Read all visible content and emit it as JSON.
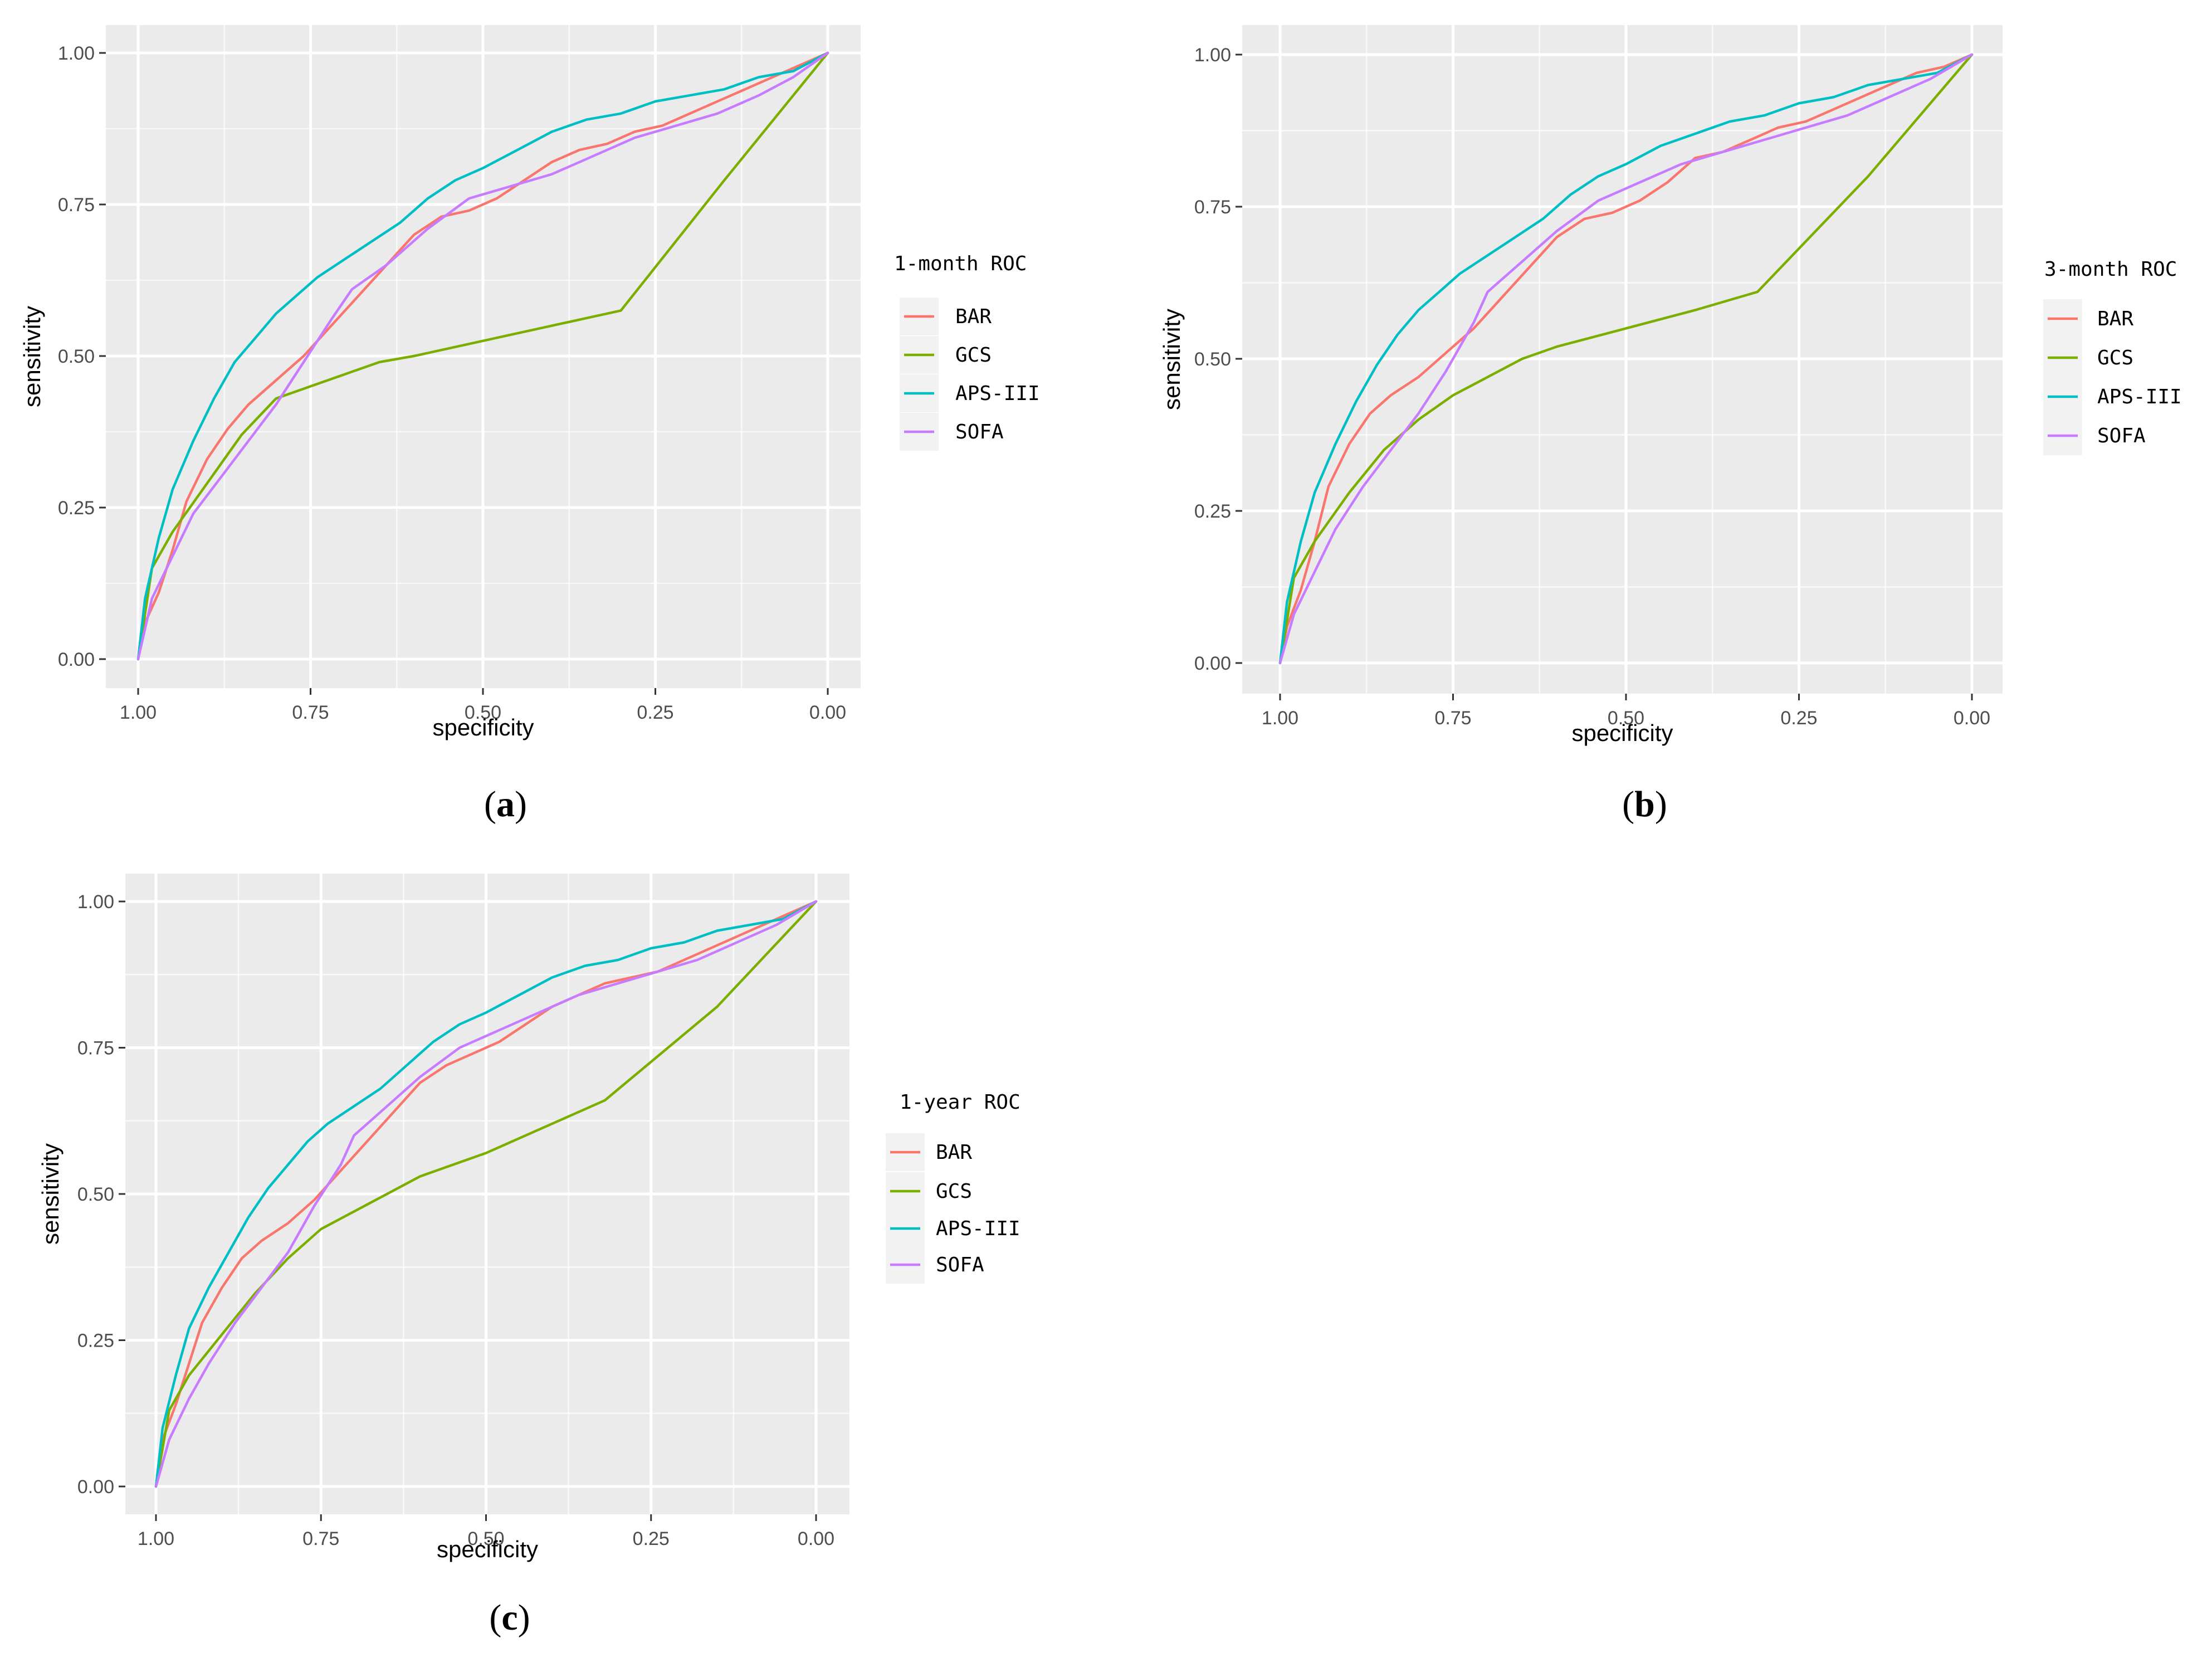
{
  "chart_data": [
    {
      "type": "line",
      "panel_label": "a",
      "legend_title": "1-month ROC",
      "xlabel": "specificity",
      "ylabel": "sensitivity",
      "xlim": [
        1.0,
        0.0
      ],
      "ylim": [
        0.0,
        1.0
      ],
      "xaxis_reversed": true,
      "x_ticks": [
        1.0,
        0.75,
        0.5,
        0.25,
        0.0
      ],
      "x_tick_labels": [
        "1.00",
        "0.75",
        "0.50",
        "0.25",
        "0.00"
      ],
      "y_ticks": [
        0.0,
        0.25,
        0.5,
        0.75,
        1.0
      ],
      "y_tick_labels": [
        "0.00",
        "0.25",
        "0.50",
        "0.75",
        "1.00"
      ],
      "grid": true,
      "legend_position": "right",
      "series": [
        {
          "name": "BAR",
          "color": "#F8766D",
          "specificity": [
            1.0,
            0.99,
            0.97,
            0.95,
            0.93,
            0.9,
            0.87,
            0.84,
            0.8,
            0.76,
            0.72,
            0.68,
            0.64,
            0.6,
            0.56,
            0.52,
            0.48,
            0.44,
            0.4,
            0.36,
            0.32,
            0.28,
            0.24,
            0.2,
            0.16,
            0.12,
            0.08,
            0.04,
            0.0
          ],
          "sensitivity": [
            0.0,
            0.06,
            0.11,
            0.18,
            0.26,
            0.33,
            0.38,
            0.42,
            0.46,
            0.5,
            0.55,
            0.6,
            0.65,
            0.7,
            0.73,
            0.74,
            0.76,
            0.79,
            0.82,
            0.84,
            0.85,
            0.87,
            0.88,
            0.9,
            0.92,
            0.94,
            0.96,
            0.98,
            1.0
          ]
        },
        {
          "name": "GCS",
          "color": "#7CAE00",
          "specificity": [
            1.0,
            0.98,
            0.95,
            0.9,
            0.85,
            0.8,
            0.75,
            0.7,
            0.65,
            0.6,
            0.5,
            0.4,
            0.3,
            0.15,
            0.0
          ],
          "sensitivity": [
            0.0,
            0.15,
            0.21,
            0.29,
            0.37,
            0.43,
            0.45,
            0.47,
            0.49,
            0.5,
            0.525,
            0.55,
            0.575,
            0.79,
            1.0
          ]
        },
        {
          "name": "APS-III",
          "color": "#00BFC4",
          "specificity": [
            1.0,
            0.99,
            0.97,
            0.95,
            0.92,
            0.89,
            0.86,
            0.83,
            0.8,
            0.77,
            0.74,
            0.7,
            0.66,
            0.62,
            0.58,
            0.54,
            0.5,
            0.45,
            0.4,
            0.35,
            0.3,
            0.25,
            0.2,
            0.15,
            0.1,
            0.05,
            0.0
          ],
          "sensitivity": [
            0.0,
            0.1,
            0.2,
            0.28,
            0.36,
            0.43,
            0.49,
            0.53,
            0.57,
            0.6,
            0.63,
            0.66,
            0.69,
            0.72,
            0.76,
            0.79,
            0.81,
            0.84,
            0.87,
            0.89,
            0.9,
            0.92,
            0.93,
            0.94,
            0.96,
            0.97,
            1.0
          ]
        },
        {
          "name": "SOFA",
          "color": "#C77CFF",
          "specificity": [
            1.0,
            0.98,
            0.95,
            0.92,
            0.88,
            0.84,
            0.8,
            0.76,
            0.72,
            0.69,
            0.64,
            0.58,
            0.52,
            0.46,
            0.4,
            0.34,
            0.28,
            0.22,
            0.16,
            0.1,
            0.05,
            0.0
          ],
          "sensitivity": [
            0.0,
            0.1,
            0.17,
            0.24,
            0.3,
            0.36,
            0.42,
            0.49,
            0.56,
            0.61,
            0.65,
            0.71,
            0.76,
            0.78,
            0.8,
            0.83,
            0.86,
            0.88,
            0.9,
            0.93,
            0.96,
            1.0
          ]
        }
      ]
    },
    {
      "type": "line",
      "panel_label": "b",
      "legend_title": "3-month ROC",
      "xlabel": "specificity",
      "ylabel": "sensitivity",
      "xlim": [
        1.0,
        0.0
      ],
      "ylim": [
        0.0,
        1.0
      ],
      "xaxis_reversed": true,
      "x_ticks": [
        1.0,
        0.75,
        0.5,
        0.25,
        0.0
      ],
      "x_tick_labels": [
        "1.00",
        "0.75",
        "0.50",
        "0.25",
        "0.00"
      ],
      "y_ticks": [
        0.0,
        0.25,
        0.5,
        0.75,
        1.0
      ],
      "y_tick_labels": [
        "0.00",
        "0.25",
        "0.50",
        "0.75",
        "1.00"
      ],
      "grid": true,
      "legend_position": "right",
      "series": [
        {
          "name": "BAR",
          "color": "#F8766D",
          "specificity": [
            1.0,
            0.99,
            0.97,
            0.95,
            0.93,
            0.9,
            0.87,
            0.84,
            0.8,
            0.76,
            0.72,
            0.68,
            0.64,
            0.6,
            0.56,
            0.52,
            0.48,
            0.44,
            0.4,
            0.36,
            0.32,
            0.28,
            0.24,
            0.2,
            0.16,
            0.12,
            0.08,
            0.04,
            0.0
          ],
          "sensitivity": [
            0.0,
            0.06,
            0.12,
            0.2,
            0.29,
            0.36,
            0.41,
            0.44,
            0.47,
            0.51,
            0.55,
            0.6,
            0.65,
            0.7,
            0.73,
            0.74,
            0.76,
            0.79,
            0.83,
            0.84,
            0.86,
            0.88,
            0.89,
            0.91,
            0.93,
            0.95,
            0.97,
            0.98,
            1.0
          ]
        },
        {
          "name": "GCS",
          "color": "#7CAE00",
          "specificity": [
            1.0,
            0.98,
            0.95,
            0.9,
            0.85,
            0.8,
            0.75,
            0.7,
            0.65,
            0.6,
            0.5,
            0.4,
            0.31,
            0.15,
            0.0
          ],
          "sensitivity": [
            0.0,
            0.14,
            0.2,
            0.28,
            0.35,
            0.4,
            0.44,
            0.47,
            0.5,
            0.52,
            0.55,
            0.58,
            0.61,
            0.8,
            1.0
          ]
        },
        {
          "name": "APS-III",
          "color": "#00BFC4",
          "specificity": [
            1.0,
            0.99,
            0.97,
            0.95,
            0.92,
            0.89,
            0.86,
            0.83,
            0.8,
            0.77,
            0.74,
            0.7,
            0.66,
            0.62,
            0.58,
            0.54,
            0.5,
            0.45,
            0.4,
            0.35,
            0.3,
            0.25,
            0.2,
            0.15,
            0.1,
            0.05,
            0.0
          ],
          "sensitivity": [
            0.0,
            0.1,
            0.2,
            0.28,
            0.36,
            0.43,
            0.49,
            0.54,
            0.58,
            0.61,
            0.64,
            0.67,
            0.7,
            0.73,
            0.77,
            0.8,
            0.82,
            0.85,
            0.87,
            0.89,
            0.9,
            0.92,
            0.93,
            0.95,
            0.96,
            0.97,
            1.0
          ]
        },
        {
          "name": "SOFA",
          "color": "#C77CFF",
          "specificity": [
            1.0,
            0.98,
            0.95,
            0.92,
            0.88,
            0.84,
            0.8,
            0.76,
            0.72,
            0.7,
            0.65,
            0.6,
            0.54,
            0.48,
            0.42,
            0.36,
            0.3,
            0.24,
            0.18,
            0.12,
            0.06,
            0.0
          ],
          "sensitivity": [
            0.0,
            0.08,
            0.15,
            0.22,
            0.29,
            0.35,
            0.41,
            0.48,
            0.56,
            0.61,
            0.66,
            0.71,
            0.76,
            0.79,
            0.82,
            0.84,
            0.86,
            0.88,
            0.9,
            0.93,
            0.96,
            1.0
          ]
        }
      ]
    },
    {
      "type": "line",
      "panel_label": "c",
      "legend_title": "1-year ROC",
      "xlabel": "specificity",
      "ylabel": "sensitivity",
      "xlim": [
        1.0,
        0.0
      ],
      "ylim": [
        0.0,
        1.0
      ],
      "xaxis_reversed": true,
      "x_ticks": [
        1.0,
        0.75,
        0.5,
        0.25,
        0.0
      ],
      "x_tick_labels": [
        "1.00",
        "0.75",
        "0.50",
        "0.25",
        "0.00"
      ],
      "y_ticks": [
        0.0,
        0.25,
        0.5,
        0.75,
        1.0
      ],
      "y_tick_labels": [
        "0.00",
        "0.25",
        "0.50",
        "0.75",
        "1.00"
      ],
      "grid": true,
      "legend_position": "right",
      "series": [
        {
          "name": "BAR",
          "color": "#F8766D",
          "specificity": [
            1.0,
            0.99,
            0.97,
            0.95,
            0.93,
            0.9,
            0.87,
            0.84,
            0.8,
            0.76,
            0.72,
            0.68,
            0.64,
            0.6,
            0.56,
            0.52,
            0.48,
            0.44,
            0.4,
            0.36,
            0.32,
            0.28,
            0.24,
            0.2,
            0.16,
            0.12,
            0.08,
            0.04,
            0.0
          ],
          "sensitivity": [
            0.0,
            0.08,
            0.14,
            0.21,
            0.28,
            0.34,
            0.39,
            0.42,
            0.45,
            0.49,
            0.54,
            0.59,
            0.64,
            0.69,
            0.72,
            0.74,
            0.76,
            0.79,
            0.82,
            0.84,
            0.86,
            0.87,
            0.88,
            0.9,
            0.92,
            0.94,
            0.96,
            0.98,
            1.0
          ]
        },
        {
          "name": "GCS",
          "color": "#7CAE00",
          "specificity": [
            1.0,
            0.98,
            0.95,
            0.9,
            0.85,
            0.8,
            0.75,
            0.7,
            0.65,
            0.6,
            0.5,
            0.4,
            0.32,
            0.15,
            0.0
          ],
          "sensitivity": [
            0.0,
            0.13,
            0.19,
            0.26,
            0.33,
            0.39,
            0.44,
            0.47,
            0.5,
            0.53,
            0.57,
            0.62,
            0.66,
            0.82,
            1.0
          ]
        },
        {
          "name": "APS-III",
          "color": "#00BFC4",
          "specificity": [
            1.0,
            0.99,
            0.97,
            0.95,
            0.92,
            0.89,
            0.86,
            0.83,
            0.8,
            0.77,
            0.74,
            0.7,
            0.66,
            0.62,
            0.58,
            0.54,
            0.5,
            0.45,
            0.4,
            0.35,
            0.3,
            0.25,
            0.2,
            0.15,
            0.1,
            0.05,
            0.0
          ],
          "sensitivity": [
            0.0,
            0.1,
            0.19,
            0.27,
            0.34,
            0.4,
            0.46,
            0.51,
            0.55,
            0.59,
            0.62,
            0.65,
            0.68,
            0.72,
            0.76,
            0.79,
            0.81,
            0.84,
            0.87,
            0.89,
            0.9,
            0.92,
            0.93,
            0.95,
            0.96,
            0.97,
            1.0
          ]
        },
        {
          "name": "SOFA",
          "color": "#C77CFF",
          "specificity": [
            1.0,
            0.98,
            0.95,
            0.92,
            0.88,
            0.84,
            0.8,
            0.76,
            0.72,
            0.7,
            0.65,
            0.6,
            0.54,
            0.48,
            0.42,
            0.36,
            0.3,
            0.24,
            0.18,
            0.12,
            0.06,
            0.0
          ],
          "sensitivity": [
            0.0,
            0.08,
            0.15,
            0.21,
            0.28,
            0.34,
            0.4,
            0.48,
            0.55,
            0.6,
            0.65,
            0.7,
            0.75,
            0.78,
            0.81,
            0.84,
            0.86,
            0.88,
            0.9,
            0.93,
            0.96,
            1.0
          ]
        }
      ]
    }
  ],
  "style": {
    "panel_background": "#EBEBEB",
    "grid_color": "#FFFFFF",
    "page_background": "#FFFFFF"
  }
}
